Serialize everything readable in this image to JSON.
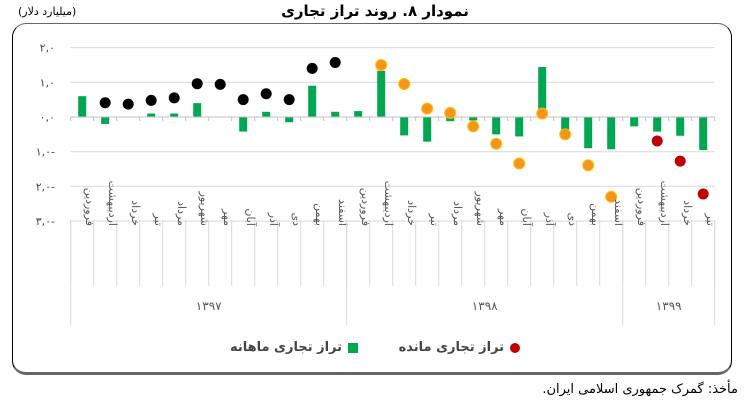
{
  "header": {
    "title": "نمودار ۸. روند تراز تجاری",
    "unit": "(میلیارد دلار)"
  },
  "footer": {
    "source": "مأخذ: گمرک جمهوری اسلامی ایران."
  },
  "legend": {
    "cumulative": "تراز تجاری مانده",
    "monthly": "تراز تجاری ماهانه"
  },
  "colors": {
    "monthly_bar": "#00a651",
    "cumulative_1397": "#000000",
    "cumulative_1398": "#f7941d",
    "cumulative_1399": "#c00000",
    "grid": "#d9d9d9"
  },
  "chart_data": {
    "type": "bar",
    "title": "نمودار ۸. روند تراز تجاری",
    "ylabel": "(میلیارد دلار)",
    "xlabel": "",
    "ylim": [
      -3.0,
      2.0
    ],
    "yticks": [
      2.0,
      1.0,
      0.0,
      -1.0,
      -2.0,
      -3.0
    ],
    "ytick_labels": [
      "۲,۰",
      "۱,۰",
      "۰,۰",
      "۱,۰-",
      "۲,۰-",
      "۳,۰-"
    ],
    "grid": true,
    "legend_position": "bottom",
    "years": [
      {
        "label": "۱۳۹۷",
        "count": 12
      },
      {
        "label": "۱۳۹۸",
        "count": 12
      },
      {
        "label": "۱۳۹۹",
        "count": 4
      }
    ],
    "categories": [
      "فروردین",
      "اردیبهشت",
      "خرداد",
      "تیر",
      "مرداد",
      "شهریور",
      "مهر",
      "آبان",
      "آذر",
      "دی",
      "بهمن",
      "اسفند",
      "فروردین",
      "اردیبهشت",
      "خرداد",
      "تیر",
      "مرداد",
      "شهریور",
      "مهر",
      "آبان",
      "آذر",
      "دی",
      "بهمن",
      "اسفند",
      "فروردین",
      "اردیبهشت",
      "خرداد",
      "تیر"
    ],
    "series": [
      {
        "name": "تراز تجاری ماهانه",
        "type": "bar",
        "values": [
          0.6,
          -0.2,
          0.0,
          0.1,
          0.1,
          0.4,
          0.0,
          -0.42,
          0.15,
          -0.15,
          0.9,
          0.15,
          0.17,
          1.33,
          -0.53,
          -0.71,
          -0.12,
          -0.1,
          -0.5,
          -0.56,
          1.44,
          -0.37,
          -0.9,
          -0.93,
          -0.27,
          -0.42,
          -0.54,
          -0.95
        ]
      },
      {
        "name": "تراز تجاری مانده",
        "type": "scatter",
        "values": [
          null,
          0.41,
          0.37,
          0.48,
          0.55,
          0.96,
          0.94,
          0.5,
          0.67,
          0.5,
          1.4,
          1.57,
          null,
          1.5,
          0.95,
          0.24,
          0.12,
          -0.27,
          -0.77,
          -1.34,
          0.1,
          -0.5,
          -1.39,
          -2.3,
          null,
          -0.69,
          -1.27,
          -2.22
        ]
      }
    ]
  }
}
